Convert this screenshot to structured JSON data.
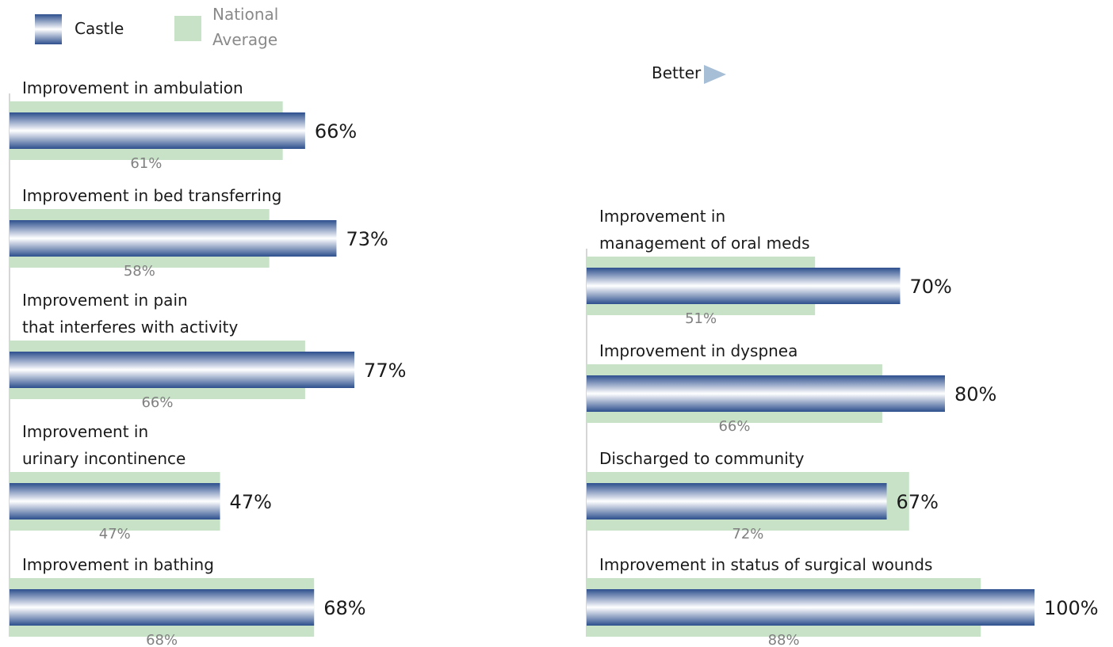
{
  "legend": {
    "castle_label": "Castle",
    "national_label_line1": "National",
    "national_label_line2": "Average"
  },
  "better_label": "Better",
  "colors": {
    "castle_dark": "#2d4f8e",
    "castle_light": "#ffffff",
    "national": "#c7e2c7",
    "national_text": "#808080",
    "axis": "#c8c8c8",
    "arrow": "#a7bfd6"
  },
  "chart_data": {
    "type": "bar",
    "orientation": "horizontal",
    "value_suffix": "%",
    "xlim": [
      0,
      100
    ],
    "series": [
      {
        "name": "Castle"
      },
      {
        "name": "National Average"
      }
    ],
    "panels": [
      {
        "items": [
          {
            "label": [
              "Improvement in ambulation"
            ],
            "castle": 66,
            "national": 61
          },
          {
            "label": [
              "Improvement in bed transferring"
            ],
            "castle": 73,
            "national": 58
          },
          {
            "label": [
              "Improvement in pain",
              "that interferes with activity"
            ],
            "castle": 77,
            "national": 66
          },
          {
            "label": [
              "Improvement in",
              "urinary incontinence"
            ],
            "castle": 47,
            "national": 47
          },
          {
            "label": [
              "Improvement in bathing"
            ],
            "castle": 68,
            "national": 68
          }
        ]
      },
      {
        "items": [
          {
            "label": [
              "Improvement in",
              "management of oral meds"
            ],
            "castle": 70,
            "national": 51
          },
          {
            "label": [
              "Improvement in dyspnea"
            ],
            "castle": 80,
            "national": 66
          },
          {
            "label": [
              "Discharged to community"
            ],
            "castle": 67,
            "national": 72
          },
          {
            "label": [
              "Improvement in status of surgical wounds"
            ],
            "castle": 100,
            "national": 88
          }
        ]
      }
    ]
  }
}
